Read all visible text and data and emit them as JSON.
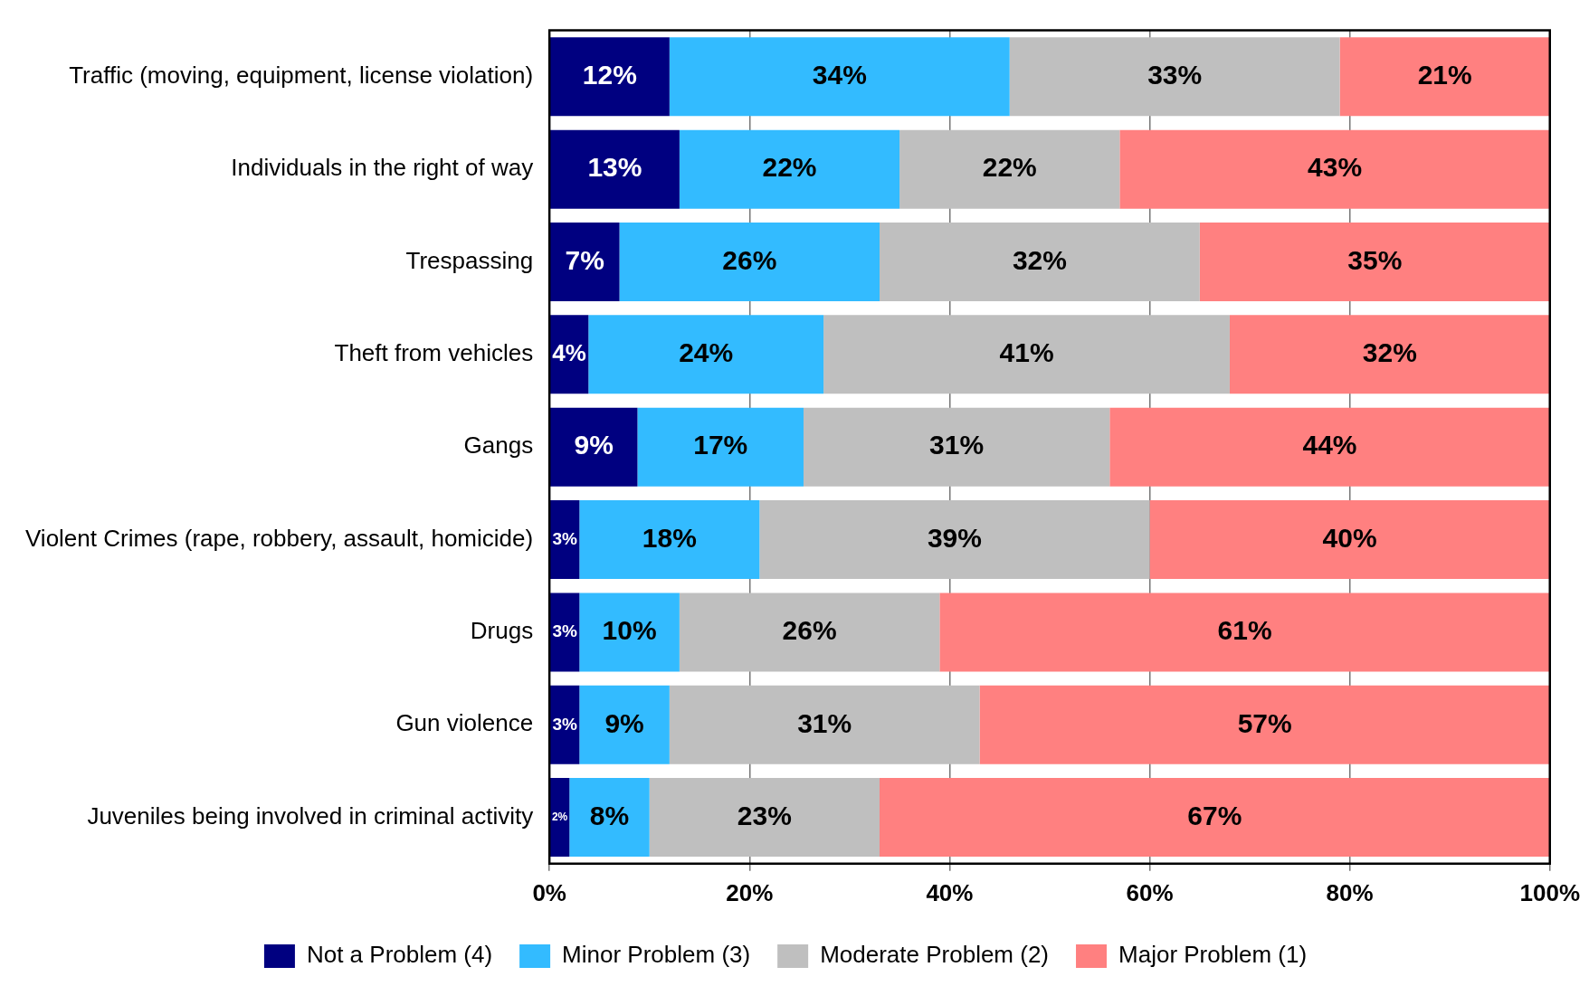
{
  "chart_data": {
    "type": "bar",
    "orientation": "horizontal",
    "stacked": true,
    "categories": [
      "Traffic (moving, equipment, license violation)",
      "Individuals in the right of way",
      "Trespassing",
      "Theft from vehicles",
      "Gangs",
      "Violent Crimes (rape, robbery, assault, homicide)",
      "Drugs",
      "Gun violence",
      "Juveniles being involved in criminal activity"
    ],
    "series": [
      {
        "name": "Not a Problem (4)",
        "color": "#000080",
        "values": [
          12,
          13,
          7,
          3.9,
          8.8,
          3,
          3,
          3,
          2
        ],
        "value_labels": [
          "12%",
          "13%",
          "7%",
          "4%",
          "9%",
          "3%",
          "3%",
          "3%",
          "2%"
        ]
      },
      {
        "name": "Minor Problem (3)",
        "color": "#33bbff",
        "values": [
          34,
          22,
          26,
          23.5,
          16.6,
          18,
          10,
          9,
          8
        ],
        "value_labels": [
          "34%",
          "22%",
          "26%",
          "24%",
          "17%",
          "18%",
          "10%",
          "9%",
          "8%"
        ]
      },
      {
        "name": "Moderate Problem (2)",
        "color": "#bfbfbf",
        "values": [
          33,
          22,
          32,
          40.6,
          30.6,
          39,
          26,
          31,
          23
        ],
        "value_labels": [
          "33%",
          "22%",
          "32%",
          "41%",
          "31%",
          "39%",
          "26%",
          "31%",
          "23%"
        ]
      },
      {
        "name": "Major Problem (1)",
        "color": "#ff8080",
        "values": [
          21,
          43,
          35,
          32,
          44,
          40,
          61,
          57,
          67
        ],
        "value_labels": [
          "21%",
          "43%",
          "35%",
          "32%",
          "44%",
          "40%",
          "61%",
          "57%",
          "67%"
        ]
      }
    ],
    "xlim": [
      0,
      100
    ],
    "xticks": [
      {
        "value": 0,
        "label": "0%"
      },
      {
        "value": 20,
        "label": "20%"
      },
      {
        "value": 40,
        "label": "40%"
      },
      {
        "value": 60,
        "label": "60%"
      },
      {
        "value": 80,
        "label": "80%"
      },
      {
        "value": 100,
        "label": "100%"
      }
    ],
    "grid": "x",
    "legend": "bottom"
  }
}
